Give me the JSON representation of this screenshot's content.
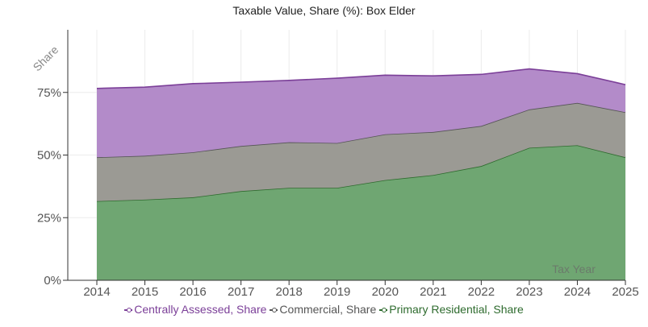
{
  "chart_data": {
    "type": "area",
    "stacked": true,
    "title": "Taxable Value, Share (%): Box Elder",
    "xlabel": "Tax Year",
    "ylabel": "Share",
    "x": [
      "2014",
      "2015",
      "2016",
      "2017",
      "2018",
      "2019",
      "2020",
      "2021",
      "2022",
      "2023",
      "2024",
      "2025"
    ],
    "ylim": [
      0,
      1
    ],
    "yticks": [
      {
        "value": 0,
        "label": "0%"
      },
      {
        "value": 0.25,
        "label": "25%"
      },
      {
        "value": 0.5,
        "label": "50%"
      },
      {
        "value": 0.75,
        "label": "75%"
      }
    ],
    "series": [
      {
        "name": "Primary Residential, Share",
        "color": "#2e6b2e",
        "fill": "#6fa672",
        "values": [
          0.316,
          0.322,
          0.331,
          0.356,
          0.369,
          0.369,
          0.4,
          0.42,
          0.456,
          0.529,
          0.539,
          0.491
        ]
      },
      {
        "name": "Commercial, Share",
        "color": "#555555",
        "fill": "#9b9a94",
        "values": [
          0.175,
          0.175,
          0.18,
          0.18,
          0.182,
          0.179,
          0.183,
          0.172,
          0.16,
          0.153,
          0.169,
          0.18
        ]
      },
      {
        "name": "Centrally Assessed, Share",
        "color": "#7b3f98",
        "fill": "#b38bc9",
        "values": [
          0.275,
          0.274,
          0.274,
          0.255,
          0.247,
          0.259,
          0.236,
          0.224,
          0.206,
          0.162,
          0.117,
          0.11
        ]
      }
    ],
    "legend_order": [
      "Centrally Assessed, Share",
      "Commercial, Share",
      "Primary Residential, Share"
    ],
    "grid": true,
    "legend_position": "bottom"
  }
}
